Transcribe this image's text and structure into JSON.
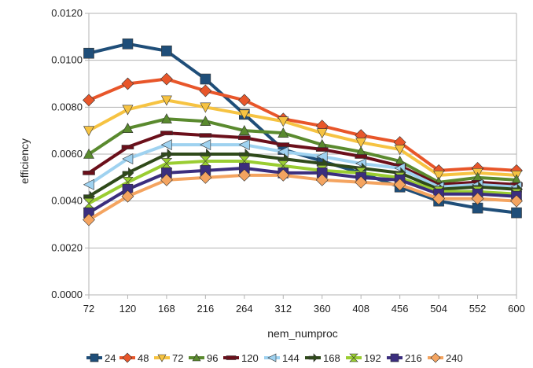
{
  "chart_data": {
    "type": "line",
    "xlabel": "nem_numproc",
    "ylabel": "efficiency",
    "ylim": [
      0,
      0.012
    ],
    "yticks": [
      "0.0000",
      "0.0020",
      "0.0040",
      "0.0060",
      "0.0080",
      "0.0100",
      "0.0120"
    ],
    "categories": [
      "72",
      "120",
      "168",
      "216",
      "264",
      "312",
      "360",
      "408",
      "456",
      "504",
      "552",
      "600"
    ],
    "grid": "horizontal",
    "legend_position": "bottom",
    "series": [
      {
        "name": "24",
        "color": "#1f4e79",
        "marker": "square",
        "values": [
          0.0103,
          0.0107,
          0.0104,
          0.0092,
          0.0077,
          0.0062,
          0.0057,
          0.0052,
          0.0046,
          0.004,
          0.0037,
          0.0035
        ]
      },
      {
        "name": "48",
        "color": "#e8562a",
        "marker": "diamond",
        "values": [
          0.0083,
          0.009,
          0.0092,
          0.0087,
          0.0083,
          0.0075,
          0.0072,
          0.0068,
          0.0065,
          0.0053,
          0.0054,
          0.0053
        ]
      },
      {
        "name": "72",
        "color": "#f6c342",
        "marker": "triangle-down",
        "values": [
          0.007,
          0.0079,
          0.0083,
          0.008,
          0.0077,
          0.0074,
          0.0069,
          0.0065,
          0.0062,
          0.0051,
          0.0052,
          0.0051
        ]
      },
      {
        "name": "96",
        "color": "#5a8a2e",
        "marker": "triangle-up",
        "values": [
          0.006,
          0.0071,
          0.0075,
          0.0074,
          0.007,
          0.0069,
          0.0064,
          0.0061,
          0.0057,
          0.0048,
          0.005,
          0.0049
        ]
      },
      {
        "name": "120",
        "color": "#6b0f1a",
        "marker": "dash",
        "values": [
          0.0052,
          0.0063,
          0.0069,
          0.0068,
          0.0067,
          0.0064,
          0.0062,
          0.0059,
          0.0055,
          0.0047,
          0.0048,
          0.0047
        ]
      },
      {
        "name": "144",
        "color": "#9fd2f0",
        "marker": "triangle-left",
        "values": [
          0.0047,
          0.0058,
          0.0064,
          0.0064,
          0.0064,
          0.0061,
          0.0059,
          0.0056,
          0.0054,
          0.0046,
          0.0047,
          0.0046
        ]
      },
      {
        "name": "168",
        "color": "#2f4a1a",
        "marker": "arrow",
        "values": [
          0.0042,
          0.0052,
          0.006,
          0.006,
          0.006,
          0.0058,
          0.0056,
          0.0054,
          0.0052,
          0.0045,
          0.0046,
          0.0045
        ]
      },
      {
        "name": "192",
        "color": "#9acd32",
        "marker": "hourglass",
        "values": [
          0.0039,
          0.0048,
          0.0056,
          0.0057,
          0.0057,
          0.0055,
          0.0053,
          0.0052,
          0.005,
          0.0044,
          0.0044,
          0.0043
        ]
      },
      {
        "name": "216",
        "color": "#3b2e7e",
        "marker": "square",
        "values": [
          0.0035,
          0.0045,
          0.0052,
          0.0053,
          0.0054,
          0.0052,
          0.0052,
          0.005,
          0.0049,
          0.0043,
          0.0043,
          0.0042
        ]
      },
      {
        "name": "240",
        "color": "#f4a460",
        "marker": "diamond",
        "values": [
          0.0032,
          0.0042,
          0.0049,
          0.005,
          0.0051,
          0.0051,
          0.0049,
          0.0048,
          0.0047,
          0.0041,
          0.0041,
          0.004
        ]
      }
    ]
  }
}
